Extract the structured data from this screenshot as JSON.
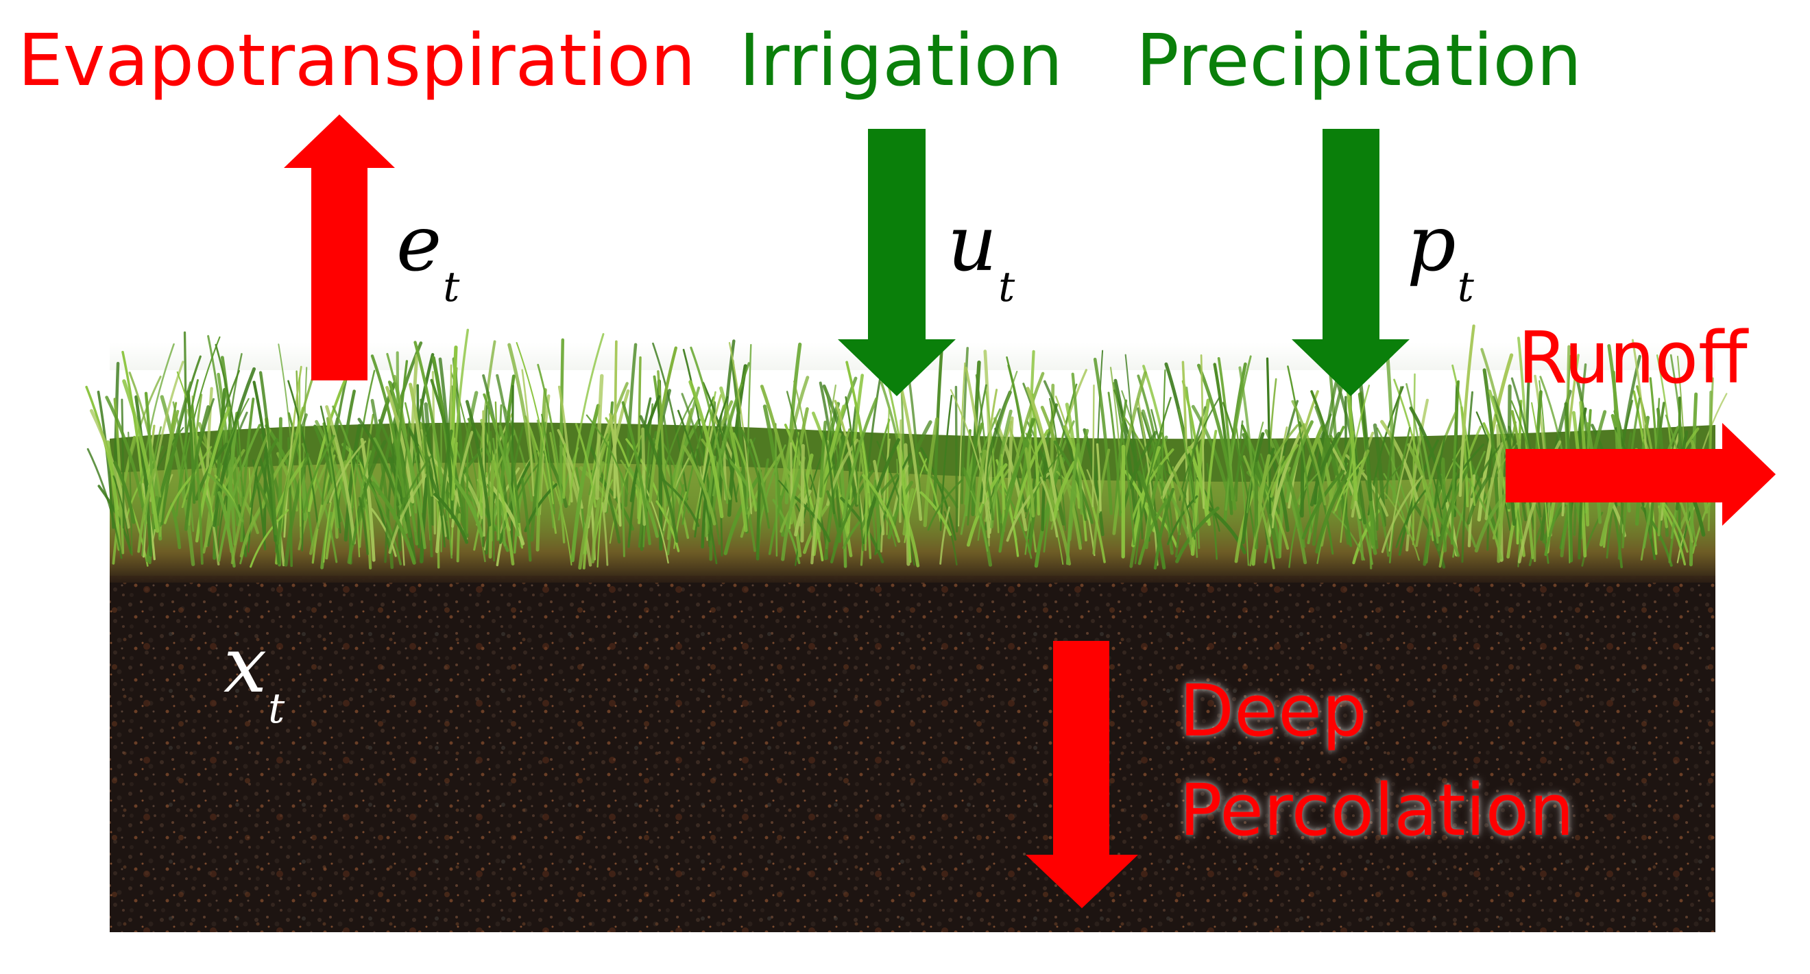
{
  "labels": {
    "evapotranspiration": "Evapotranspiration",
    "irrigation": "Irrigation",
    "precipitation": "Precipitation",
    "runoff": "Runoff",
    "deep_line1": "Deep",
    "deep_line2": "Percolation"
  },
  "variables": {
    "e": {
      "base": "e",
      "sub": "t"
    },
    "u": {
      "base": "u",
      "sub": "t"
    },
    "p": {
      "base": "p",
      "sub": "t"
    },
    "x": {
      "base": "x",
      "sub": "t"
    }
  },
  "colors": {
    "loss": "#ff0000",
    "gain": "#0a7f0a",
    "soil": "#1d1411",
    "grass_dark": "#3f7d1f",
    "grass_light": "#8bc43f"
  },
  "icons": {
    "evapotranspiration_arrow": "up-arrow-icon",
    "irrigation_arrow": "down-arrow-icon",
    "precipitation_arrow": "down-arrow-icon",
    "runoff_arrow": "right-arrow-icon",
    "percolation_arrow": "down-arrow-icon"
  }
}
